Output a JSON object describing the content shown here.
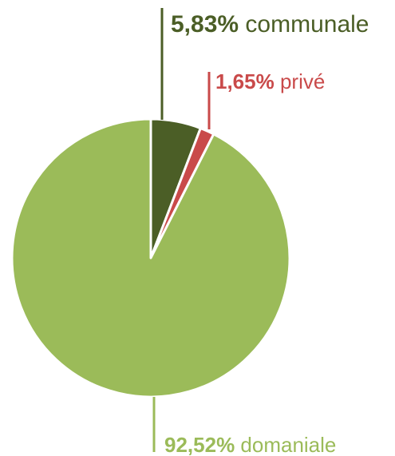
{
  "chart_data": {
    "type": "pie",
    "slices": [
      {
        "percent_label": "5,83%",
        "name": "communale",
        "value": 5.83,
        "color": "#4b5e26"
      },
      {
        "percent_label": "1,65%",
        "name": "privé",
        "value": 1.65,
        "color": "#c94a4a"
      },
      {
        "percent_label": "92,52%",
        "name": "domaniale",
        "value": 92.52,
        "color": "#9bbb59"
      }
    ],
    "start_angle": "12 o'clock",
    "direction": "clockwise",
    "slice_border_color": "#ffffff",
    "label_style": "leader lines with bold percentage and name"
  }
}
